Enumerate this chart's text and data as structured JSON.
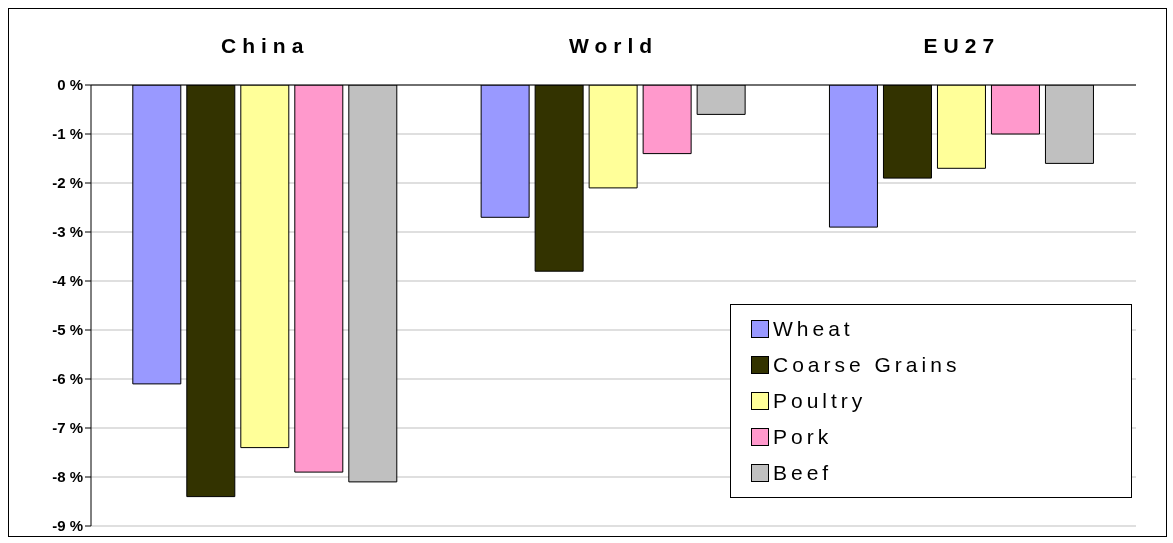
{
  "chart_data": {
    "type": "bar",
    "categories": [
      "China",
      "World",
      "EU27"
    ],
    "series": [
      {
        "name": "Wheat",
        "color": "#9999ff",
        "values": [
          -6.1,
          -2.7,
          -2.9
        ]
      },
      {
        "name": "Coarse Grains",
        "color": "#333300",
        "values": [
          -8.4,
          -3.8,
          -1.9
        ]
      },
      {
        "name": "Poultry",
        "color": "#ffff99",
        "values": [
          -7.4,
          -2.1,
          -1.7
        ]
      },
      {
        "name": "Pork",
        "color": "#ff99cc",
        "values": [
          -7.9,
          -1.4,
          -1.0
        ]
      },
      {
        "name": "Beef",
        "color": "#c0c0c0",
        "values": [
          -8.1,
          -0.6,
          -1.6
        ]
      }
    ],
    "ylim": [
      -9,
      0
    ],
    "yticks": [
      {
        "value": -9,
        "label": "-9 %"
      },
      {
        "value": -8,
        "label": "-8 %"
      },
      {
        "value": -7,
        "label": "-7 %"
      },
      {
        "value": -6,
        "label": "-6 %"
      },
      {
        "value": -5,
        "label": "-5 %"
      },
      {
        "value": -4,
        "label": "-4 %"
      },
      {
        "value": -3,
        "label": "-3 %"
      },
      {
        "value": -2,
        "label": "-2 %"
      },
      {
        "value": -1,
        "label": "-1 %"
      },
      {
        "value": 0,
        "label": "0 %"
      }
    ],
    "grid": "y",
    "legend": "bottom right"
  }
}
